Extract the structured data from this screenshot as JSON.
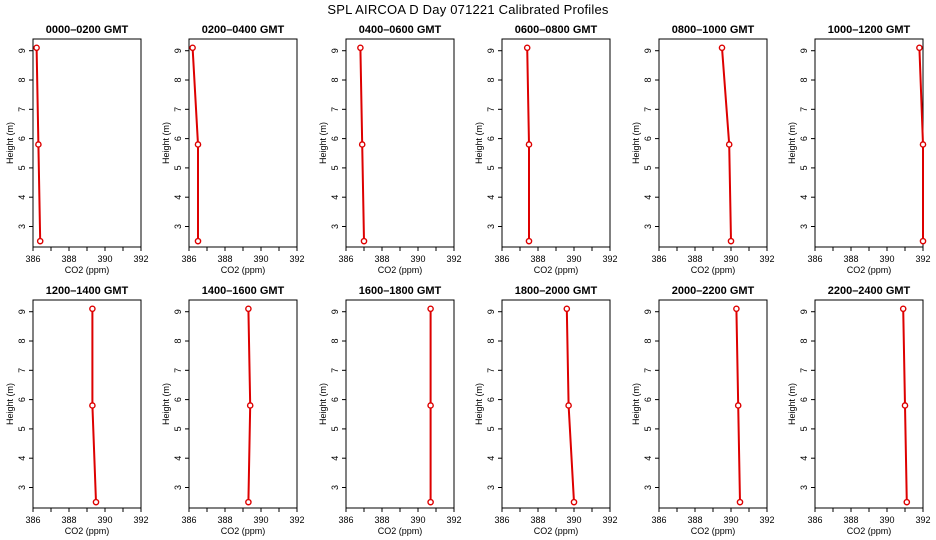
{
  "page": {
    "title": "SPL AIRCOA D  Day 071221  Calibrated Profiles"
  },
  "colors": {
    "series": "#dd0000",
    "axis": "#000000"
  },
  "axes": {
    "xlabel": "CO2 (ppm)",
    "ylabel": "Height (m)",
    "xlim": [
      386,
      392
    ],
    "ylim": [
      2.3,
      9.4
    ],
    "xticks": [
      386,
      388,
      390,
      392
    ],
    "xminor": [
      387,
      389,
      391
    ],
    "yticks": [
      3,
      4,
      5,
      6,
      7,
      8,
      9
    ]
  },
  "chart_data": [
    {
      "type": "line",
      "title": "0000–0200 GMT",
      "x": [
        386.2,
        386.3,
        386.4
      ],
      "y": [
        9.1,
        5.8,
        2.5
      ]
    },
    {
      "type": "line",
      "title": "0200–0400 GMT",
      "x": [
        386.2,
        386.5,
        386.5
      ],
      "y": [
        9.1,
        5.8,
        2.5
      ]
    },
    {
      "type": "line",
      "title": "0400–0600 GMT",
      "x": [
        386.8,
        386.9,
        387.0
      ],
      "y": [
        9.1,
        5.8,
        2.5
      ]
    },
    {
      "type": "line",
      "title": "0600–0800 GMT",
      "x": [
        387.4,
        387.5,
        387.5
      ],
      "y": [
        9.1,
        5.8,
        2.5
      ]
    },
    {
      "type": "line",
      "title": "0800–1000 GMT",
      "x": [
        389.5,
        389.9,
        390.0
      ],
      "y": [
        9.1,
        5.8,
        2.5
      ]
    },
    {
      "type": "line",
      "title": "1000–1200 GMT",
      "x": [
        391.8,
        392.0,
        392.0
      ],
      "y": [
        9.1,
        5.8,
        2.5
      ]
    },
    {
      "type": "line",
      "title": "1200–1400 GMT",
      "x": [
        389.3,
        389.3,
        389.5
      ],
      "y": [
        9.1,
        5.8,
        2.5
      ]
    },
    {
      "type": "line",
      "title": "1400–1600 GMT",
      "x": [
        389.3,
        389.4,
        389.3
      ],
      "y": [
        9.1,
        5.8,
        2.5
      ]
    },
    {
      "type": "line",
      "title": "1600–1800 GMT",
      "x": [
        390.7,
        390.7,
        390.7
      ],
      "y": [
        9.1,
        5.8,
        2.5
      ]
    },
    {
      "type": "line",
      "title": "1800–2000 GMT",
      "x": [
        389.6,
        389.7,
        390.0
      ],
      "y": [
        9.1,
        5.8,
        2.5
      ]
    },
    {
      "type": "line",
      "title": "2000–2200 GMT",
      "x": [
        390.3,
        390.4,
        390.5
      ],
      "y": [
        9.1,
        5.8,
        2.5
      ]
    },
    {
      "type": "line",
      "title": "2200–2400 GMT",
      "x": [
        390.9,
        391.0,
        391.1
      ],
      "y": [
        9.1,
        5.8,
        2.5
      ]
    }
  ]
}
